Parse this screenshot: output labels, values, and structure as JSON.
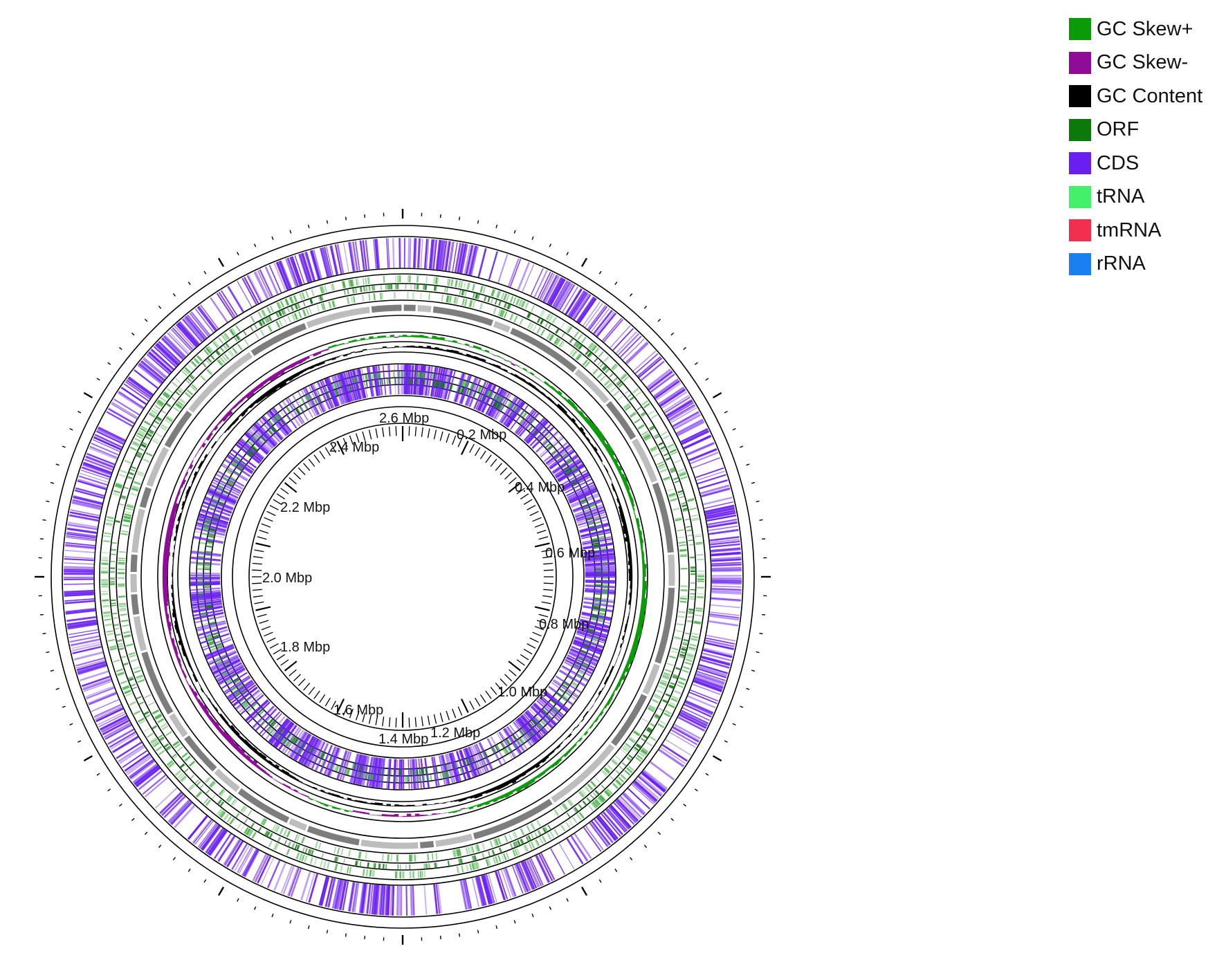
{
  "legend": [
    {
      "label": "GC Skew+",
      "color": "#0a9a0a",
      "icon": "green-square"
    },
    {
      "label": "GC Skew-",
      "color": "#8e0c98",
      "icon": "purple-square"
    },
    {
      "label": "GC Content",
      "color": "#000000",
      "icon": "black-square"
    },
    {
      "label": "ORF",
      "color": "#0b7a0b",
      "icon": "dark-green-square"
    },
    {
      "label": "CDS",
      "color": "#6a1ff0",
      "icon": "violet-square"
    },
    {
      "label": "tRNA",
      "color": "#44f06a",
      "icon": "light-green-square"
    },
    {
      "label": "tmRNA",
      "color": "#f0304e",
      "icon": "red-square"
    },
    {
      "label": "rRNA",
      "color": "#1a7ff0",
      "icon": "blue-square"
    }
  ],
  "scale_labels": [
    "0.2 Mbp",
    "0.4 Mbp",
    "0.6 Mbp",
    "0.8 Mbp",
    "1.0 Mbp",
    "1.2 Mbp",
    "1.4 Mbp",
    "1.6 Mbp",
    "1.8 Mbp",
    "2.0 Mbp",
    "2.2 Mbp",
    "2.4 Mbp",
    "2.6 Mbp"
  ],
  "colors": {
    "cds": "#6a1ff0",
    "orf": "#0b7a0b",
    "orf_light": "#3fb03f",
    "skew_plus": "#0a9a0a",
    "skew_minus": "#8e0c98",
    "gc_content": "#000000",
    "contig_dark": "#7d7d7d",
    "contig_light": "#bdbdbd",
    "ring_line": "#000000"
  }
}
